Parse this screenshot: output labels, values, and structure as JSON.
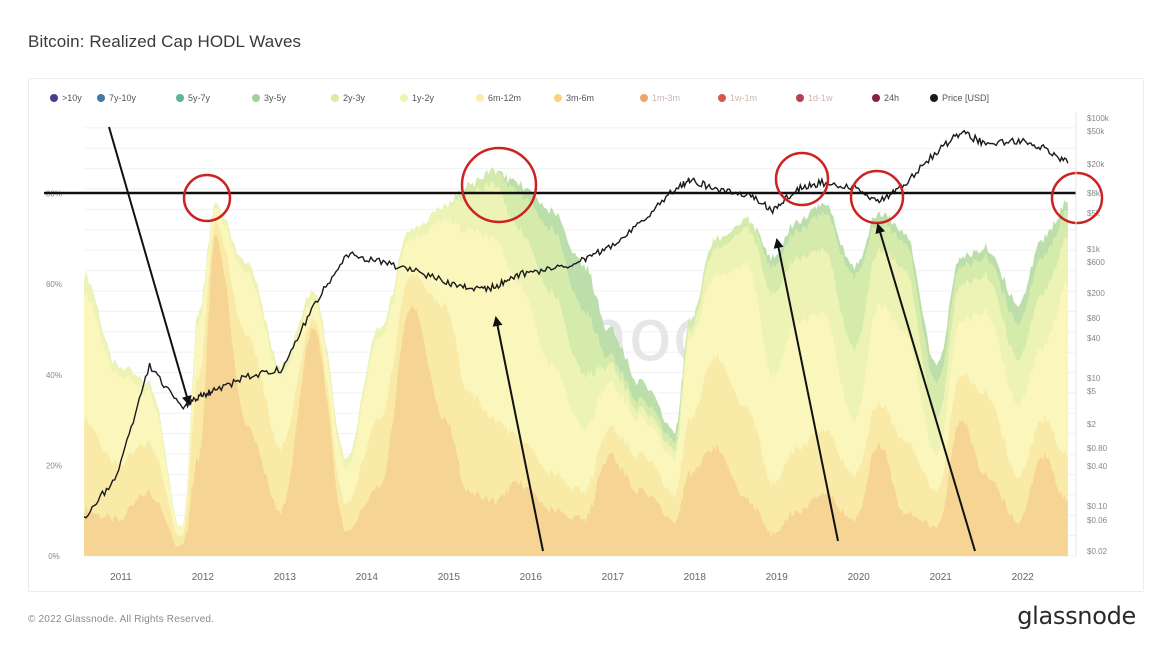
{
  "header": {
    "title": "Bitcoin: Realized Cap HODL Waves"
  },
  "footer": {
    "copyright": "© 2022 Glassnode. All Rights Reserved.",
    "brand": "glassnode"
  },
  "watermark": "glassnode",
  "legend": [
    {
      "label": ">10y",
      "color": "#4b3c8f",
      "muted": false
    },
    {
      "label": "7y-10y",
      "color": "#3f79a8",
      "muted": false
    },
    {
      "label": "5y-7y",
      "color": "#5db39c",
      "muted": false
    },
    {
      "label": "3y-5y",
      "color": "#9fd39a",
      "muted": false
    },
    {
      "label": "2y-3y",
      "color": "#d9ec9f",
      "muted": false
    },
    {
      "label": "1y-2y",
      "color": "#eef5b0",
      "muted": false
    },
    {
      "label": "6m-12m",
      "color": "#faf0a8",
      "muted": false
    },
    {
      "label": "3m-6m",
      "color": "#f5d57f",
      "muted": false
    },
    {
      "label": "1m-3m",
      "color": "#eea46a",
      "muted": true
    },
    {
      "label": "1w-1m",
      "color": "#d9574a",
      "muted": true
    },
    {
      "label": "1d-1w",
      "color": "#b84050",
      "muted": true
    },
    {
      "label": "24h",
      "color": "#8a1f44",
      "muted": false
    },
    {
      "label": "Price [USD]",
      "color": "#1a1a1a",
      "muted": false
    }
  ],
  "chart_data": {
    "type": "area",
    "title": "Bitcoin: Realized Cap HODL Waves",
    "xlabel": "",
    "ylabel": "",
    "x_ticks": [
      "2011",
      "2012",
      "2013",
      "2014",
      "2015",
      "2016",
      "2017",
      "2018",
      "2019",
      "2020",
      "2021",
      "2022"
    ],
    "y_left_ticks": [
      "0%",
      "20%",
      "40%",
      "60%",
      "80%"
    ],
    "y_left_range": [
      0,
      100
    ],
    "y_right_ticks": [
      "$100k",
      "$50k",
      "$20k",
      "$8k",
      "$5k",
      "$1k",
      "$600",
      "$200",
      "$80",
      "$40",
      "$10",
      "$5",
      "$2",
      "$0.80",
      "$0.40",
      "$0.10",
      "$0.06",
      "$0.02"
    ],
    "y_right_scale": "log",
    "grid": true,
    "legend_position": "top",
    "x": [
      2010.6,
      2011.0,
      2011.4,
      2011.8,
      2012.0,
      2012.2,
      2012.6,
      2013.0,
      2013.4,
      2013.8,
      2014.2,
      2014.6,
      2015.0,
      2015.3,
      2015.6,
      2015.9,
      2016.3,
      2016.7,
      2017.0,
      2017.4,
      2017.8,
      2018.0,
      2018.3,
      2018.7,
      2019.0,
      2019.3,
      2019.6,
      2020.0,
      2020.3,
      2020.6,
      2021.0,
      2021.3,
      2021.6,
      2022.0,
      2022.3,
      2022.6
    ],
    "series": [
      {
        "name": "3m-6m (cumulative short band)",
        "values": [
          10,
          8,
          14,
          2,
          22,
          70,
          28,
          10,
          50,
          6,
          15,
          55,
          30,
          14,
          12,
          16,
          10,
          8,
          22,
          14,
          8,
          18,
          24,
          12,
          5,
          10,
          14,
          8,
          25,
          10,
          6,
          30,
          18,
          8,
          22,
          12
        ]
      },
      {
        "name": "6m-12m (cumulative)",
        "values": [
          30,
          20,
          25,
          4,
          40,
          73,
          48,
          24,
          52,
          12,
          30,
          62,
          55,
          36,
          30,
          26,
          18,
          14,
          28,
          22,
          14,
          30,
          44,
          32,
          16,
          24,
          28,
          18,
          34,
          26,
          14,
          40,
          36,
          18,
          30,
          22
        ]
      },
      {
        "name": "1y-2y (cumulative)",
        "values": [
          58,
          40,
          36,
          6,
          52,
          76,
          62,
          40,
          56,
          20,
          48,
          70,
          74,
          72,
          70,
          60,
          42,
          28,
          38,
          30,
          22,
          48,
          62,
          64,
          40,
          52,
          54,
          30,
          56,
          50,
          22,
          52,
          54,
          34,
          46,
          60
        ]
      },
      {
        "name": "2y-3y (cumulative)",
        "values": [
          62,
          42,
          38,
          6,
          54,
          77,
          64,
          42,
          58,
          22,
          50,
          72,
          77,
          80,
          82,
          72,
          58,
          40,
          42,
          32,
          24,
          50,
          68,
          72,
          58,
          66,
          68,
          46,
          68,
          64,
          30,
          60,
          62,
          44,
          58,
          70
        ]
      },
      {
        "name": "3y-5y (cumulative)",
        "values": [
          62,
          42,
          38,
          6,
          54,
          77,
          64,
          42,
          58,
          22,
          50,
          72,
          77,
          82,
          85,
          80,
          72,
          54,
          44,
          34,
          26,
          52,
          70,
          74,
          64,
          72,
          76,
          62,
          74,
          70,
          38,
          64,
          66,
          52,
          66,
          76
        ]
      },
      {
        "name": "5y-7y (cumulative)",
        "values": [
          62,
          42,
          38,
          6,
          54,
          77,
          64,
          42,
          58,
          22,
          50,
          72,
          77,
          82,
          85,
          82,
          76,
          64,
          50,
          38,
          28,
          52,
          70,
          74,
          66,
          74,
          78,
          64,
          76,
          72,
          42,
          66,
          68,
          56,
          70,
          78
        ]
      }
    ],
    "price_usd_approx": [
      0.06,
      0.3,
      15,
      3,
      5,
      6,
      10,
      13,
      120,
      800,
      600,
      450,
      300,
      230,
      240,
      380,
      450,
      650,
      1000,
      2500,
      8000,
      11000,
      8000,
      6500,
      3700,
      8000,
      10000,
      8500,
      5000,
      9500,
      30000,
      60000,
      40000,
      45000,
      35000,
      20000
    ],
    "annotations": {
      "horizontal_line_pct": 79.5,
      "circles": [
        {
          "x": 2012.1,
          "y_pct": 80
        },
        {
          "x": 2015.7,
          "y_pct": 82
        },
        {
          "x": 2019.3,
          "y_pct": 82
        },
        {
          "x": 2020.3,
          "y_pct": 79
        },
        {
          "x": 2022.7,
          "y_pct": 78
        }
      ],
      "arrows": [
        {
          "from": [
            2010.9,
            95
          ],
          "to": [
            2011.8,
            42
          ]
        },
        {
          "from": [
            2016.0,
            0
          ],
          "to": [
            2015.5,
            58
          ]
        },
        {
          "from": [
            2019.7,
            2
          ],
          "to": [
            2018.9,
            70
          ]
        },
        {
          "from": [
            2021.2,
            0
          ],
          "to": [
            2020.2,
            72
          ]
        }
      ]
    }
  }
}
